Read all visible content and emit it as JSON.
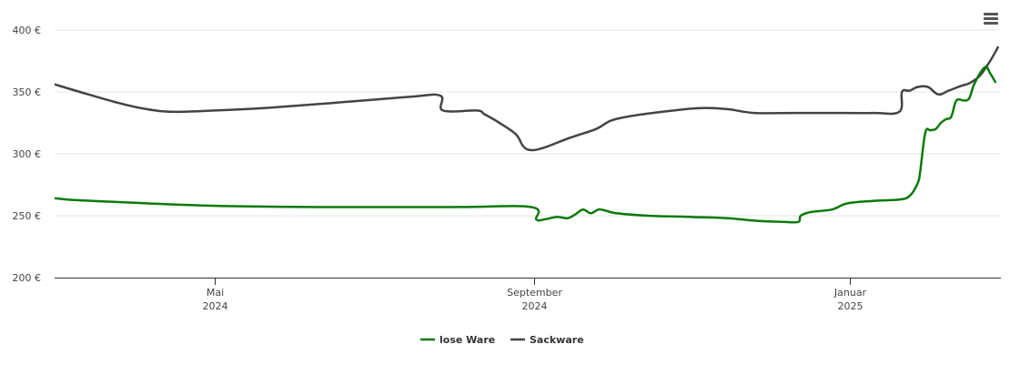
{
  "menu": {
    "icon": "hamburger-menu-icon"
  },
  "chart_data": {
    "type": "line",
    "title": "",
    "xlabel": "",
    "ylabel": "",
    "ylim": [
      200,
      400
    ],
    "y_ticks": [
      {
        "value": 200,
        "label": "200 €"
      },
      {
        "value": 250,
        "label": "250 €"
      },
      {
        "value": 300,
        "label": "300 €"
      },
      {
        "value": 350,
        "label": "350 €"
      },
      {
        "value": 400,
        "label": "400 €"
      }
    ],
    "xlim": [
      "2024-02-23",
      "2025-02-19"
    ],
    "x_ticks": [
      {
        "date": "2024-05-01",
        "month": "Mai",
        "year": "2024"
      },
      {
        "date": "2024-09-01",
        "month": "September",
        "year": "2024"
      },
      {
        "date": "2025-01-01",
        "month": "Januar",
        "year": "2025"
      }
    ],
    "grid": true,
    "legend_position": "bottom-center",
    "series": [
      {
        "name": "lose Ware",
        "color": "#0b7a0b",
        "points": [
          [
            "2024-02-23",
            284
          ],
          [
            "2024-02-24",
            267
          ],
          [
            "2024-03-01",
            264
          ],
          [
            "2024-03-15",
            262
          ],
          [
            "2024-05-01",
            258
          ],
          [
            "2024-06-15",
            257
          ],
          [
            "2024-08-01",
            257
          ],
          [
            "2024-08-31",
            257
          ],
          [
            "2024-09-02",
            247
          ],
          [
            "2024-09-05",
            247
          ],
          [
            "2024-09-10",
            249
          ],
          [
            "2024-09-14",
            248
          ],
          [
            "2024-09-17",
            251
          ],
          [
            "2024-09-20",
            255
          ],
          [
            "2024-09-23",
            252
          ],
          [
            "2024-09-26",
            255
          ],
          [
            "2024-09-29",
            254
          ],
          [
            "2024-10-03",
            252
          ],
          [
            "2024-10-15",
            250
          ],
          [
            "2024-11-01",
            249
          ],
          [
            "2024-11-15",
            248
          ],
          [
            "2024-11-25",
            246
          ],
          [
            "2024-12-06",
            245
          ],
          [
            "2024-12-12",
            245
          ],
          [
            "2024-12-13",
            250
          ],
          [
            "2024-12-17",
            253
          ],
          [
            "2024-12-25",
            255
          ],
          [
            "2024-12-31",
            260
          ],
          [
            "2025-01-10",
            262
          ],
          [
            "2025-01-20",
            263
          ],
          [
            "2025-01-24",
            266
          ],
          [
            "2025-01-27",
            276
          ],
          [
            "2025-01-28",
            285
          ],
          [
            "2025-01-30",
            317
          ],
          [
            "2025-02-01",
            319
          ],
          [
            "2025-02-03",
            320
          ],
          [
            "2025-02-05",
            325
          ],
          [
            "2025-02-07",
            328
          ],
          [
            "2025-02-09",
            330
          ],
          [
            "2025-02-11",
            343
          ],
          [
            "2025-02-14",
            343
          ],
          [
            "2025-02-16",
            345
          ],
          [
            "2025-02-18",
            357
          ],
          [
            "2025-02-22",
            370
          ],
          [
            "2025-02-24",
            365
          ],
          [
            "2025-02-26",
            358
          ]
        ]
      },
      {
        "name": "Sackware",
        "color": "#444444",
        "points": [
          [
            "2024-02-23",
            360
          ],
          [
            "2024-03-10",
            350
          ],
          [
            "2024-03-25",
            341
          ],
          [
            "2024-04-05",
            336
          ],
          [
            "2024-04-15",
            334
          ],
          [
            "2024-05-01",
            335
          ],
          [
            "2024-05-20",
            337
          ],
          [
            "2024-06-15",
            341
          ],
          [
            "2024-07-15",
            346
          ],
          [
            "2024-07-27",
            347
          ],
          [
            "2024-07-28",
            335
          ],
          [
            "2024-08-10",
            335
          ],
          [
            "2024-08-13",
            332
          ],
          [
            "2024-08-18",
            326
          ],
          [
            "2024-08-25",
            316
          ],
          [
            "2024-08-28",
            306
          ],
          [
            "2024-08-31",
            303
          ],
          [
            "2024-09-05",
            305
          ],
          [
            "2024-09-15",
            313
          ],
          [
            "2024-09-25",
            320
          ],
          [
            "2024-10-01",
            327
          ],
          [
            "2024-10-10",
            331
          ],
          [
            "2024-10-25",
            335
          ],
          [
            "2024-11-05",
            337
          ],
          [
            "2024-11-15",
            336
          ],
          [
            "2024-11-25",
            333
          ],
          [
            "2024-12-10",
            333
          ],
          [
            "2024-12-25",
            333
          ],
          [
            "2025-01-10",
            333
          ],
          [
            "2025-01-20",
            334
          ],
          [
            "2025-01-21",
            350
          ],
          [
            "2025-01-24",
            351
          ],
          [
            "2025-01-27",
            354
          ],
          [
            "2025-01-31",
            354
          ],
          [
            "2025-02-04",
            348
          ],
          [
            "2025-02-08",
            351
          ],
          [
            "2025-02-13",
            355
          ],
          [
            "2025-02-16",
            357
          ],
          [
            "2025-02-20",
            363
          ],
          [
            "2025-02-24",
            375
          ],
          [
            "2025-02-27",
            386
          ]
        ]
      }
    ]
  }
}
